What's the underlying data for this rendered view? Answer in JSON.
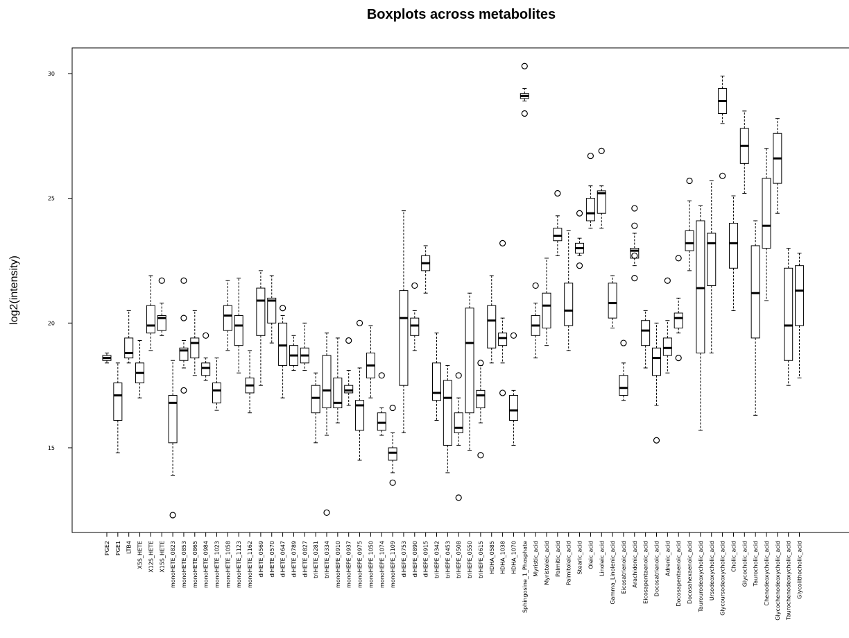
{
  "chart_data": {
    "type": "boxplot",
    "title": "Boxplots across metabolites",
    "xlabel": "",
    "ylabel": "log2(intensity)",
    "ylim": [
      11.2,
      31
    ],
    "yticks": [
      15,
      20,
      25,
      30
    ],
    "grid": false,
    "legend": "none",
    "colors": {
      "box_border": "#000000",
      "box_fill": "#ffffff",
      "median": "#000000",
      "whisker": "#000000"
    },
    "categories": [
      "PGE2",
      "PGE1",
      "LTB4",
      "X5S_HETE",
      "X12S_HETE",
      "X15S_HETE",
      "monoHETE_0823",
      "monoHETE_0853",
      "monoHETE_0865",
      "monoHETE_0984",
      "monoHETE_1023",
      "monoHETE_1058",
      "monoHETE_1123",
      "monoHETE_1162",
      "diHETE_0569",
      "diHETE_0570",
      "diHETE_0647",
      "diHETE_0789",
      "diHETE_0827",
      "triHETE_0281",
      "triHETE_0334",
      "monoHEPE_0910",
      "monoHEPE_0937",
      "monoHEPE_0975",
      "monoHEPE_1050",
      "monoHEPE_1074",
      "monoHEPE_1109",
      "diHEPE_0753",
      "diHEPE_0890",
      "diHEPE_0915",
      "triHEPE_0342",
      "triHEPE_0453",
      "triHEPE_0508",
      "triHEPE_0550",
      "triHEPE_0615",
      "HDHA_0585",
      "HDHA_1038",
      "HDHA_1070",
      "Sphingosine_1_Phosphate",
      "Myristic_acid",
      "Myristoleic_acid",
      "Palmitic_acid",
      "Palmitoleic_acid",
      "Stearic_acid",
      "Oleic_acid",
      "Linoleic_acid",
      "Gamma_Linolenic_acid",
      "Eicosatrienoic_acid",
      "Arachidonic_acid",
      "Eicosapentaenoic_acid",
      "Docosatrienoic_acid",
      "Adrenic_acid",
      "Docosapentaenoic_acid",
      "Docosahexaenoic_acid",
      "Taurourodeoxycholic_acid",
      "Ursodeoxycholic_acid",
      "Glycoursodeoxycholic_acid",
      "Cholic_acid",
      "Glycocholic_acid",
      "Taurocholic_acid",
      "Chenodeoxycholic_acid",
      "Glycochenodeoxycholic_acid",
      "Taurochenodeoxycholic_acid",
      "Glycolithocholic_acid"
    ],
    "series": [
      {
        "stats": [
          [
            18.4,
            18.5,
            18.6,
            18.7,
            18.8
          ],
          [
            14.8,
            16.1,
            17.1,
            17.6,
            18.4
          ],
          [
            18.4,
            18.6,
            18.8,
            19.4,
            20.5
          ],
          [
            17.0,
            17.6,
            18.0,
            18.4,
            19.3
          ],
          [
            18.9,
            19.6,
            19.9,
            20.7,
            21.9
          ],
          [
            19.5,
            19.7,
            20.2,
            20.3,
            20.8
          ],
          [
            13.9,
            15.2,
            16.8,
            17.1,
            18.5
          ],
          [
            18.2,
            18.5,
            18.9,
            19.0,
            19.3
          ],
          [
            17.9,
            18.6,
            19.2,
            19.4,
            20.5
          ],
          [
            17.7,
            17.9,
            18.2,
            18.4,
            18.6
          ],
          [
            16.5,
            16.8,
            17.3,
            17.6,
            18.6
          ],
          [
            18.9,
            19.7,
            20.3,
            20.7,
            21.7
          ],
          [
            18.0,
            19.1,
            19.9,
            20.3,
            21.8
          ],
          [
            16.4,
            17.2,
            17.5,
            17.8,
            18.9
          ],
          [
            17.5,
            19.5,
            20.9,
            21.4,
            22.1
          ],
          [
            19.2,
            20.0,
            20.9,
            21.0,
            21.9
          ],
          [
            17.0,
            18.3,
            19.1,
            20.0,
            20.3
          ],
          [
            18.1,
            18.3,
            18.7,
            19.1,
            19.5
          ],
          [
            18.1,
            18.4,
            18.7,
            19.0,
            20.0
          ],
          [
            15.2,
            16.4,
            17.0,
            17.5,
            18.0
          ],
          [
            15.5,
            16.6,
            17.3,
            18.7,
            19.6
          ],
          [
            16.0,
            16.6,
            16.8,
            17.8,
            19.4
          ],
          [
            16.7,
            17.2,
            17.3,
            17.5,
            18.1
          ],
          [
            14.5,
            15.7,
            16.7,
            16.9,
            18.2
          ],
          [
            17.0,
            17.8,
            18.3,
            18.8,
            19.9
          ],
          [
            15.5,
            15.7,
            16.0,
            16.4,
            16.6
          ],
          [
            14.0,
            14.5,
            14.8,
            15.0,
            15.6
          ],
          [
            15.6,
            17.5,
            20.2,
            21.3,
            24.5
          ],
          [
            18.9,
            19.5,
            19.9,
            20.2,
            20.5
          ],
          [
            21.2,
            22.1,
            22.4,
            22.7,
            23.1
          ],
          [
            16.1,
            16.9,
            17.2,
            18.4,
            19.6
          ],
          [
            14.0,
            15.1,
            17.0,
            17.7,
            18.3
          ],
          [
            15.1,
            15.6,
            15.8,
            16.4,
            17.0
          ],
          [
            14.9,
            16.4,
            19.2,
            20.6,
            21.2
          ],
          [
            16.0,
            16.6,
            17.1,
            17.3,
            18.3
          ],
          [
            18.4,
            19.0,
            20.1,
            20.7,
            21.9
          ],
          [
            18.4,
            19.1,
            19.4,
            19.6,
            20.2
          ],
          [
            15.1,
            16.1,
            16.5,
            17.1,
            17.3
          ],
          [
            28.9,
            29.0,
            29.1,
            29.2,
            29.4
          ],
          [
            18.6,
            19.5,
            19.9,
            20.3,
            20.8
          ],
          [
            19.1,
            19.8,
            20.7,
            21.2,
            22.6
          ],
          [
            22.7,
            23.3,
            23.5,
            23.8,
            24.3
          ],
          [
            18.9,
            19.9,
            20.5,
            21.6,
            23.7
          ],
          [
            22.7,
            22.8,
            23.0,
            23.2,
            23.4
          ],
          [
            23.8,
            24.1,
            24.4,
            25.0,
            25.5
          ],
          [
            23.8,
            24.4,
            25.2,
            25.3,
            25.5
          ],
          [
            19.8,
            20.2,
            20.8,
            21.6,
            21.9
          ],
          [
            16.9,
            17.1,
            17.4,
            17.9,
            18.4
          ],
          [
            22.3,
            22.6,
            22.9,
            23.0,
            23.6
          ],
          [
            18.2,
            19.1,
            19.7,
            20.1,
            20.5
          ],
          [
            16.7,
            17.9,
            18.6,
            19.0,
            20.0
          ],
          [
            18.0,
            18.7,
            19.0,
            19.4,
            20.1
          ],
          [
            19.6,
            19.8,
            20.2,
            20.4,
            21.0
          ],
          [
            22.1,
            22.9,
            23.2,
            23.7,
            24.9
          ],
          [
            15.7,
            18.8,
            21.4,
            24.1,
            24.7
          ],
          [
            18.8,
            21.5,
            23.2,
            23.6,
            25.7
          ],
          [
            28.0,
            28.4,
            28.9,
            29.4,
            29.9
          ],
          [
            20.5,
            22.2,
            23.2,
            24.0,
            25.1
          ],
          [
            25.2,
            26.4,
            27.1,
            27.8,
            28.5
          ],
          [
            16.3,
            19.4,
            21.2,
            23.1,
            24.1
          ],
          [
            20.9,
            23.0,
            23.9,
            25.8,
            27.0
          ],
          [
            24.4,
            25.6,
            26.6,
            27.6,
            28.2
          ],
          [
            17.5,
            18.5,
            19.9,
            22.2,
            23.0
          ],
          [
            17.8,
            19.9,
            21.3,
            22.3,
            22.8
          ]
        ]
      }
    ],
    "outliers": [
      [],
      [],
      [],
      [],
      [],
      [
        21.7
      ],
      [
        12.3
      ],
      [
        17.3,
        20.2,
        21.7
      ],
      [],
      [
        19.5
      ],
      [],
      [],
      [],
      [],
      [],
      [],
      [
        20.6
      ],
      [],
      [],
      [],
      [
        12.4
      ],
      [],
      [
        19.3
      ],
      [
        20.0
      ],
      [],
      [
        17.9
      ],
      [
        13.6,
        16.6
      ],
      [],
      [
        21.5
      ],
      [],
      [],
      [],
      [
        13.0,
        17.9
      ],
      [],
      [
        14.7,
        18.4
      ],
      [],
      [
        17.2,
        23.2
      ],
      [
        19.5
      ],
      [
        28.4,
        30.3
      ],
      [
        21.5
      ],
      [],
      [
        25.2
      ],
      [],
      [
        22.3,
        24.4
      ],
      [
        26.7
      ],
      [
        26.9
      ],
      [],
      [
        19.2
      ],
      [
        21.8,
        23.9,
        24.6,
        22.7
      ],
      [],
      [
        15.3
      ],
      [
        21.7
      ],
      [
        18.6,
        22.6
      ],
      [
        25.7
      ],
      [],
      [],
      [
        25.9
      ],
      [],
      [],
      [],
      [],
      [],
      [],
      []
    ]
  }
}
